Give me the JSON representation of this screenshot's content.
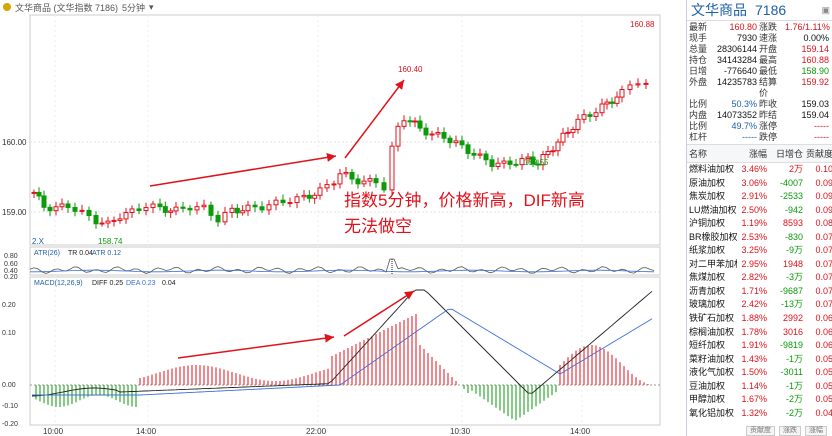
{
  "titlebar": {
    "text": "文华商品 (文华指数 7186)",
    "period": "5分钟"
  },
  "main_chart": {
    "price_labels": [
      "160.00",
      "159.00"
    ],
    "markers": {
      "high_left": "160.40",
      "high_right": "160.88",
      "low_left": "158.74",
      "low_mid": "159.55",
      "corner_left": "2.X"
    },
    "annotation": "指数5分钟，价格新高，DIF新高\n无法做空",
    "annotation_line1": "指数5分钟，价格新高，DIF新高",
    "annotation_line2": "无法做空"
  },
  "atr_panel": {
    "legend_a": "ATR(26)",
    "legend_b": "TR 0.04",
    "legend_c": "ATR 0.12",
    "ticks": [
      "0.80",
      "0.60",
      "0.40",
      "0.20"
    ]
  },
  "macd_panel": {
    "legend_a": "MACD(12,26,9)",
    "legend_b": "DIFF 0.25",
    "legend_c": "DEA 0.23",
    "legend_d": "0.04",
    "ticks": [
      "0.20",
      "0.10",
      "0.00",
      "-0.10",
      "-0.20"
    ]
  },
  "time_axis": [
    "10:00",
    "14:00",
    "22:00",
    "10:30",
    "14:00"
  ],
  "quote": {
    "name": "文华商品",
    "code": "7186",
    "rows": [
      {
        "k1": "最新",
        "v1": "160.80",
        "c1": "red",
        "k2": "涨跌",
        "v2": "1.76/1.11%",
        "c2": "red"
      },
      {
        "k1": "现手",
        "v1": "7930",
        "c1": "blk",
        "k2": "速涨",
        "v2": "0.00%",
        "c2": "blk"
      },
      {
        "k1": "总量",
        "v1": "28306144",
        "c1": "blk",
        "k2": "开盘",
        "v2": "159.14",
        "c2": "red"
      },
      {
        "k1": "持仓",
        "v1": "34143284",
        "c1": "blk",
        "k2": "最高",
        "v2": "160.88",
        "c2": "red"
      },
      {
        "k1": "日增",
        "v1": "-776640",
        "c1": "blk",
        "k2": "最低",
        "v2": "158.90",
        "c2": "green"
      },
      {
        "k1": "外盘",
        "v1": "14235783",
        "c1": "blk",
        "k2": "结算价",
        "v2": "159.92",
        "c2": "red"
      },
      {
        "k1": "比例",
        "v1": "50.3%",
        "c1": "blue",
        "k2": "昨收",
        "v2": "159.03",
        "c2": "blk"
      },
      {
        "k1": "内盘",
        "v1": "14073352",
        "c1": "blk",
        "k2": "昨结",
        "v2": "159.04",
        "c2": "blk"
      },
      {
        "k1": "比例",
        "v1": "49.7%",
        "c1": "blue",
        "k2": "涨停",
        "v2": "-----",
        "c2": "red"
      },
      {
        "k1": "杠杆",
        "v1": "-----",
        "c1": "blue",
        "k2": "跌停",
        "v2": "-----",
        "c2": "red"
      }
    ]
  },
  "list": {
    "headers": [
      "名称",
      "涨幅",
      "日增仓",
      "贡献度"
    ],
    "rows": [
      [
        "燃料油加权",
        "3.46%",
        "2万",
        "0.10"
      ],
      [
        "原油加权",
        "3.06%",
        "-4007",
        "0.09"
      ],
      [
        "焦炭加权",
        "2.91%",
        "-2533",
        "0.09"
      ],
      [
        "LU燃油加权",
        "2.50%",
        "-942",
        "0.09"
      ],
      [
        "沪铜加权",
        "1.19%",
        "8593",
        "0.08"
      ],
      [
        "BR橡胶加权",
        "2.53%",
        "-830",
        "0.07"
      ],
      [
        "纸浆加权",
        "3.25%",
        "-9万",
        "0.07"
      ],
      [
        "对二甲苯加权",
        "2.95%",
        "1948",
        "0.07"
      ],
      [
        "焦煤加权",
        "2.82%",
        "-3万",
        "0.07"
      ],
      [
        "沥青加权",
        "1.71%",
        "-9687",
        "0.07"
      ],
      [
        "玻璃加权",
        "2.42%",
        "-13万",
        "0.07"
      ],
      [
        "铁矿石加权",
        "1.88%",
        "2992",
        "0.06"
      ],
      [
        "棕榈油加权",
        "1.78%",
        "3016",
        "0.06"
      ],
      [
        "短纤加权",
        "1.91%",
        "-9819",
        "0.06"
      ],
      [
        "菜籽油加权",
        "1.43%",
        "-1万",
        "0.05"
      ],
      [
        "液化气加权",
        "1.50%",
        "-3011",
        "0.05"
      ],
      [
        "豆油加权",
        "1.14%",
        "-1万",
        "0.05"
      ],
      [
        "甲醇加权",
        "1.67%",
        "-2万",
        "0.05"
      ],
      [
        "氧化铝加权",
        "1.32%",
        "-2万",
        "0.04"
      ]
    ]
  },
  "footer_tabs": [
    "贡献度",
    "涨跌",
    "涨幅"
  ],
  "colors": {
    "up": "#e0121b",
    "down": "#0a9a0a",
    "arrow": "#e0121b",
    "dif": "#222222",
    "dea": "#3a6fd8"
  }
}
